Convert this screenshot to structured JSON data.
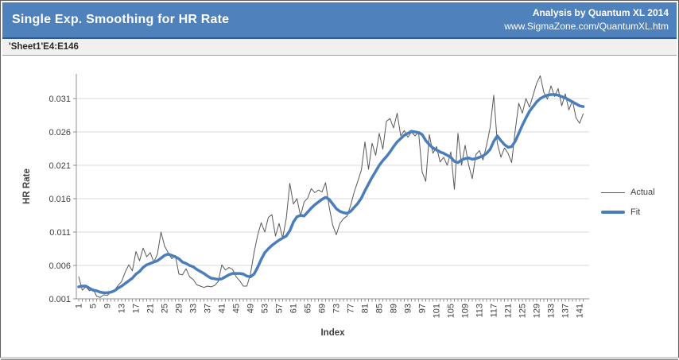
{
  "header": {
    "title": "Single Exp. Smoothing for HR Rate",
    "credit_line1": "Analysis by Quantum XL 2014",
    "credit_line2": "www.SigmaZone.com/QuantumXL.htm"
  },
  "subtitle": "'Sheet1'E4:E146",
  "colors": {
    "header_bg": "#4f81bd",
    "header_rule": "#2c5a93",
    "actual_line": "#595959",
    "fit_line": "#4a7ebb",
    "gridline": "#d9d9d9",
    "axis": "#8f8f8f",
    "tick_text": "#3f3f3f"
  },
  "chart_data": {
    "type": "line",
    "title": "",
    "xlabel": "Index",
    "ylabel": "HR Rate",
    "x_start": 1,
    "x_step": 1,
    "n_points": 142,
    "x_ticks": [
      1,
      5,
      9,
      13,
      17,
      21,
      25,
      29,
      33,
      37,
      41,
      45,
      49,
      53,
      57,
      61,
      65,
      69,
      73,
      77,
      81,
      85,
      89,
      93,
      97,
      101,
      105,
      109,
      113,
      117,
      121,
      125,
      129,
      133,
      137,
      141
    ],
    "y_ticks": [
      "0.001",
      "0.006",
      "0.011",
      "0.016",
      "0.021",
      "0.026",
      "0.031"
    ],
    "ylim": [
      0.001,
      0.0347
    ],
    "grid": "horizontal",
    "legend_position": "right",
    "series": [
      {
        "name": "Actual",
        "color": "#595959",
        "width": 1,
        "values": [
          0.0043,
          0.0023,
          0.0028,
          0.0022,
          0.0025,
          0.0014,
          0.0012,
          0.0016,
          0.0015,
          0.0021,
          0.0023,
          0.003,
          0.0036,
          0.005,
          0.0061,
          0.0052,
          0.0081,
          0.0067,
          0.0086,
          0.0073,
          0.0079,
          0.0065,
          0.0077,
          0.011,
          0.0089,
          0.0079,
          0.007,
          0.0075,
          0.0047,
          0.0046,
          0.0055,
          0.0043,
          0.0039,
          0.0031,
          0.0029,
          0.0027,
          0.0029,
          0.0028,
          0.003,
          0.0036,
          0.0061,
          0.0053,
          0.0057,
          0.0054,
          0.0043,
          0.0037,
          0.0029,
          0.0029,
          0.0047,
          0.0079,
          0.0105,
          0.0124,
          0.011,
          0.0132,
          0.0136,
          0.0104,
          0.0123,
          0.0101,
          0.013,
          0.0183,
          0.0152,
          0.016,
          0.0134,
          0.0155,
          0.0161,
          0.0175,
          0.0169,
          0.0173,
          0.017,
          0.0184,
          0.0148,
          0.012,
          0.0106,
          0.0123,
          0.013,
          0.0134,
          0.015,
          0.017,
          0.0186,
          0.0203,
          0.0245,
          0.0204,
          0.0243,
          0.0225,
          0.0258,
          0.0234,
          0.0276,
          0.028,
          0.0266,
          0.0288,
          0.0254,
          0.0262,
          0.0252,
          0.026,
          0.0254,
          0.0259,
          0.02,
          0.0186,
          0.0256,
          0.0228,
          0.0238,
          0.0215,
          0.0222,
          0.021,
          0.023,
          0.0174,
          0.0258,
          0.021,
          0.024,
          0.021,
          0.019,
          0.0226,
          0.0232,
          0.0218,
          0.024,
          0.0267,
          0.0315,
          0.0243,
          0.0222,
          0.0236,
          0.0228,
          0.0214,
          0.0262,
          0.0303,
          0.0288,
          0.031,
          0.0297,
          0.0315,
          0.0333,
          0.0344,
          0.0319,
          0.0309,
          0.0329,
          0.0313,
          0.0325,
          0.0299,
          0.0317,
          0.0293,
          0.0307,
          0.0281,
          0.0273,
          0.0287
        ]
      },
      {
        "name": "Fit",
        "color": "#4a7ebb",
        "width": 3.5,
        "values": [
          0.0028,
          0.0029,
          0.0029,
          0.0026,
          0.0023,
          0.0022,
          0.002,
          0.0019,
          0.0019,
          0.002,
          0.0022,
          0.0026,
          0.0029,
          0.0033,
          0.0037,
          0.0041,
          0.0047,
          0.0051,
          0.0057,
          0.0061,
          0.0063,
          0.0065,
          0.0067,
          0.0071,
          0.0075,
          0.0077,
          0.0075,
          0.0073,
          0.007,
          0.0065,
          0.0063,
          0.006,
          0.0058,
          0.0054,
          0.0051,
          0.0048,
          0.0044,
          0.0041,
          0.004,
          0.0039,
          0.004,
          0.0043,
          0.0046,
          0.0048,
          0.0048,
          0.0048,
          0.0047,
          0.0044,
          0.0043,
          0.0047,
          0.0057,
          0.0069,
          0.0079,
          0.0085,
          0.009,
          0.0094,
          0.0098,
          0.0101,
          0.0104,
          0.0112,
          0.0125,
          0.0133,
          0.0135,
          0.0134,
          0.014,
          0.0146,
          0.0151,
          0.0155,
          0.0159,
          0.0162,
          0.0159,
          0.0152,
          0.0145,
          0.0141,
          0.0139,
          0.0138,
          0.0141,
          0.0147,
          0.0153,
          0.0161,
          0.0172,
          0.0182,
          0.0192,
          0.0201,
          0.021,
          0.0217,
          0.0223,
          0.023,
          0.0238,
          0.0245,
          0.025,
          0.0255,
          0.0258,
          0.0261,
          0.026,
          0.0259,
          0.0256,
          0.0247,
          0.0241,
          0.0236,
          0.0233,
          0.023,
          0.0228,
          0.0225,
          0.0222,
          0.0216,
          0.0214,
          0.0218,
          0.022,
          0.0221,
          0.0219,
          0.022,
          0.0222,
          0.0224,
          0.0228,
          0.0234,
          0.0246,
          0.0254,
          0.0247,
          0.0241,
          0.0237,
          0.0238,
          0.0246,
          0.0258,
          0.027,
          0.0281,
          0.0291,
          0.0298,
          0.0305,
          0.031,
          0.0313,
          0.0315,
          0.0316,
          0.0316,
          0.0315,
          0.0313,
          0.0311,
          0.0308,
          0.0305,
          0.0302,
          0.0299,
          0.0298
        ]
      }
    ]
  }
}
